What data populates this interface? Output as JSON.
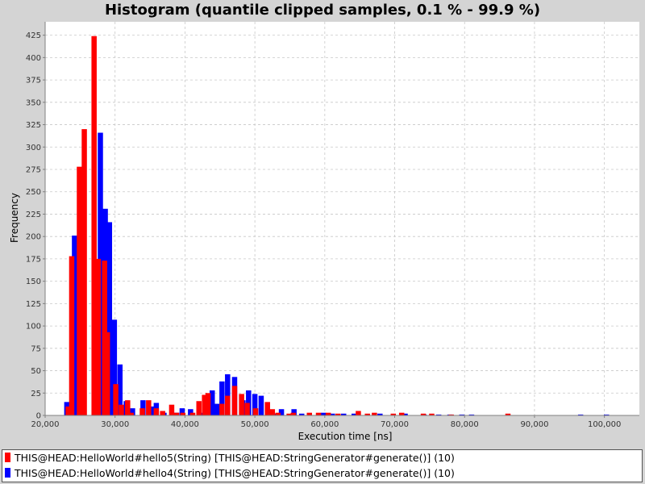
{
  "chart_data": {
    "type": "bar",
    "title": "Histogram (quantile clipped samples, 0.1 % - 99.9 %)",
    "xlabel": "Execution time [ns]",
    "ylabel": "Frequency",
    "xlim": [
      20000,
      105000
    ],
    "ylim": [
      0,
      440
    ],
    "xticks": [
      20000,
      30000,
      40000,
      50000,
      60000,
      70000,
      80000,
      90000,
      100000
    ],
    "xtick_labels": [
      "20,000",
      "30,000",
      "40,000",
      "50,000",
      "60,000",
      "70,000",
      "80,000",
      "90,000",
      "100,000"
    ],
    "yticks": [
      0,
      25,
      50,
      75,
      100,
      125,
      150,
      175,
      200,
      225,
      250,
      275,
      300,
      325,
      350,
      375,
      400,
      425
    ],
    "grid": true,
    "legend_position": "bottom",
    "series": [
      {
        "name": "THIS@HEAD:HelloWorld#hello5(String) [THIS@HEAD:StringGenerator#generate()] (10)",
        "color": "#ff0000",
        "bin_width": 750,
        "x": [
          23300,
          23800,
          24900,
          25600,
          27000,
          27600,
          28500,
          28900,
          30100,
          30900,
          31800,
          32300,
          33900,
          34800,
          35900,
          36800,
          38100,
          38800,
          39700,
          41100,
          42000,
          42800,
          43300,
          45300,
          46100,
          47100,
          48100,
          48900,
          50100,
          51800,
          52500,
          53300,
          54900,
          55500,
          57800,
          59100,
          60500,
          61900,
          64800,
          66100,
          67100,
          69800,
          71000,
          74100,
          75300,
          78100,
          86200
        ],
        "values": [
          10,
          178,
          278,
          320,
          424,
          175,
          173,
          93,
          35,
          12,
          17,
          3,
          8,
          17,
          8,
          5,
          12,
          3,
          3,
          3,
          16,
          23,
          25,
          13,
          22,
          33,
          24,
          14,
          8,
          15,
          7,
          3,
          2,
          3,
          3,
          3,
          3,
          2,
          5,
          2,
          3,
          2,
          3,
          2,
          2,
          1,
          2
        ]
      },
      {
        "name": "THIS@HEAD:HelloWorld#hello4(String) [THIS@HEAD:StringGenerator#generate()] (10)",
        "color": "#0000ff",
        "bin_width": 750,
        "x": [
          23100,
          24200,
          25000,
          27200,
          27900,
          28600,
          29200,
          29900,
          30700,
          31600,
          32500,
          34000,
          35300,
          35900,
          37000,
          38800,
          39600,
          40800,
          42200,
          43200,
          43900,
          44600,
          45300,
          46100,
          47100,
          48300,
          49100,
          50000,
          50900,
          51800,
          52700,
          53800,
          55600,
          56700,
          57800,
          59800,
          61100,
          62700,
          64200,
          67900,
          71500,
          74200,
          76300,
          77900,
          79600,
          81000,
          96600,
          100300
        ],
        "values": [
          15,
          201,
          164,
          0,
          316,
          231,
          216,
          107,
          57,
          16,
          8,
          17,
          10,
          14,
          3,
          3,
          8,
          7,
          3,
          22,
          28,
          13,
          38,
          46,
          43,
          17,
          28,
          24,
          22,
          7,
          2,
          7,
          7,
          2,
          2,
          3,
          2,
          2,
          2,
          2,
          2,
          1,
          1,
          1,
          1,
          1,
          1,
          1
        ]
      }
    ]
  }
}
